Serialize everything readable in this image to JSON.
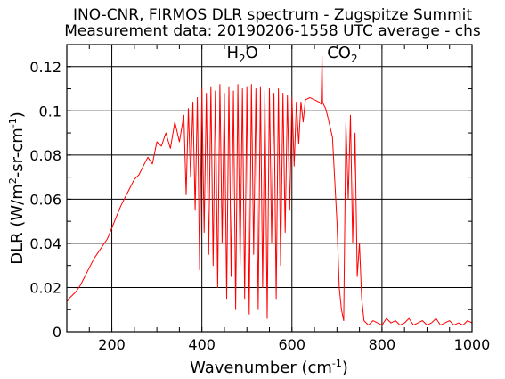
{
  "chart_data": {
    "type": "line",
    "title": "INO-CNR, FIRMOS DLR spectrum - Zugspitze Summit",
    "subtitle": "Measurement data: 20190206-1558 UTC average - chs",
    "xlabel": {
      "main": "Wavenumber (cm",
      "sup": "-1",
      "end": ")"
    },
    "ylabel": {
      "p1": "DLR (W/m",
      "sup1": "2",
      "p2": "-sr-cm",
      "sup2": "-1",
      "p3": ")"
    },
    "xlim": [
      100,
      1000
    ],
    "ylim": [
      0,
      0.13
    ],
    "xticks": [
      "200",
      "400",
      "600",
      "800",
      "1000"
    ],
    "xtick_values": [
      200,
      400,
      600,
      800,
      1000
    ],
    "yticks": [
      "0",
      "0.02",
      "0.04",
      "0.06",
      "0.08",
      "0.1",
      "0.12"
    ],
    "ytick_values": [
      0,
      0.02,
      0.04,
      0.06,
      0.08,
      0.1,
      0.12
    ],
    "grid": true,
    "line_color": "#ff0000",
    "annotations": [
      {
        "base": "H",
        "sub": "2",
        "rest": "O",
        "x": 490,
        "y": 0.124
      },
      {
        "base": "CO",
        "sub": "2",
        "rest": "",
        "x": 712,
        "y": 0.124
      }
    ],
    "series": [
      {
        "x": [
          100,
          110,
          120,
          130,
          140,
          150,
          160,
          170,
          180,
          190,
          200,
          210,
          220,
          230,
          240,
          250,
          260,
          270,
          280,
          290,
          300,
          310,
          320,
          330,
          340,
          350,
          360,
          365,
          370,
          375,
          380,
          385,
          390,
          395,
          400,
          405,
          410,
          415,
          420,
          425,
          430,
          435,
          440,
          445,
          450,
          455,
          460,
          465,
          470,
          475,
          480,
          485,
          490,
          495,
          500,
          505,
          510,
          515,
          520,
          525,
          530,
          535,
          540,
          545,
          550,
          555,
          560,
          565,
          570,
          575,
          580,
          585,
          590,
          595,
          600,
          605,
          610,
          615,
          620,
          625,
          630,
          640,
          650,
          660,
          665,
          667,
          668,
          670,
          675,
          680,
          690,
          700,
          705,
          710,
          715,
          720,
          725,
          730,
          735,
          740,
          745,
          750,
          755,
          760,
          765,
          770,
          780,
          790,
          800,
          810,
          820,
          830,
          840,
          850,
          860,
          870,
          880,
          890,
          900,
          910,
          920,
          930,
          940,
          950,
          960,
          970,
          980,
          990,
          1000
        ],
        "y": [
          0.014,
          0.016,
          0.018,
          0.021,
          0.025,
          0.029,
          0.033,
          0.036,
          0.039,
          0.042,
          0.047,
          0.052,
          0.057,
          0.061,
          0.065,
          0.069,
          0.071,
          0.075,
          0.079,
          0.076,
          0.086,
          0.084,
          0.09,
          0.083,
          0.095,
          0.086,
          0.098,
          0.062,
          0.101,
          0.07,
          0.104,
          0.055,
          0.106,
          0.028,
          0.11,
          0.045,
          0.108,
          0.035,
          0.111,
          0.03,
          0.109,
          0.02,
          0.112,
          0.04,
          0.108,
          0.015,
          0.111,
          0.025,
          0.109,
          0.01,
          0.112,
          0.03,
          0.11,
          0.015,
          0.111,
          0.008,
          0.112,
          0.035,
          0.11,
          0.01,
          0.111,
          0.02,
          0.109,
          0.006,
          0.11,
          0.04,
          0.108,
          0.015,
          0.11,
          0.03,
          0.108,
          0.045,
          0.107,
          0.055,
          0.106,
          0.075,
          0.104,
          0.085,
          0.104,
          0.095,
          0.105,
          0.106,
          0.105,
          0.104,
          0.103,
          0.125,
          0.104,
          0.103,
          0.101,
          0.097,
          0.088,
          0.05,
          0.02,
          0.01,
          0.005,
          0.095,
          0.06,
          0.098,
          0.04,
          0.09,
          0.025,
          0.04,
          0.015,
          0.005,
          0.004,
          0.003,
          0.005,
          0.004,
          0.003,
          0.006,
          0.004,
          0.005,
          0.003,
          0.004,
          0.006,
          0.003,
          0.004,
          0.005,
          0.003,
          0.004,
          0.006,
          0.003,
          0.004,
          0.005,
          0.003,
          0.004,
          0.003,
          0.005,
          0.004
        ]
      }
    ]
  }
}
